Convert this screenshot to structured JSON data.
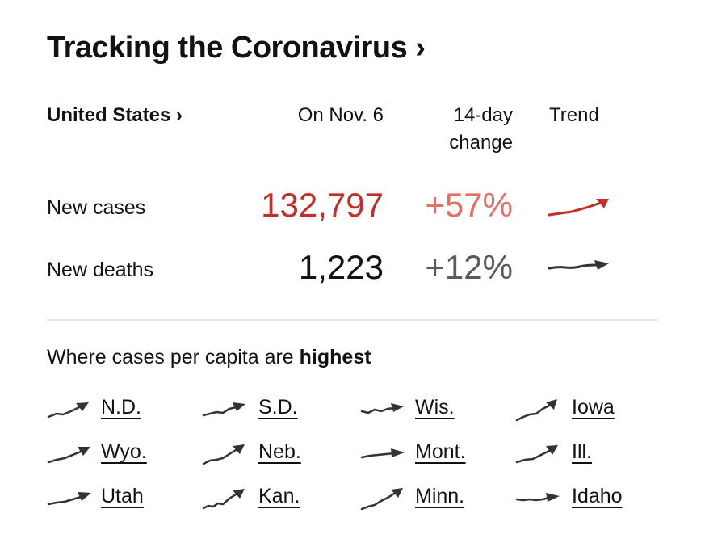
{
  "header": {
    "title": "Tracking the Coronavirus ›"
  },
  "table": {
    "country_label": "United States ›",
    "col_date": "On Nov. 6",
    "col_change_line1": "14-day",
    "col_change_line2": "change",
    "col_trend": "Trend",
    "rows": [
      {
        "label": "New cases",
        "value": "132,797",
        "change": "+57%"
      },
      {
        "label": "New deaths",
        "value": "1,223",
        "change": "+12%"
      }
    ]
  },
  "highest": {
    "prefix": "Where cases per capita are ",
    "emphasis": "highest",
    "states": [
      "N.D.",
      "S.D.",
      "Wis.",
      "Iowa",
      "Wyo.",
      "Neb.",
      "Mont.",
      "Ill.",
      "Utah",
      "Kan.",
      "Minn.",
      "Idaho"
    ]
  },
  "colors": {
    "cases": "#c0302b",
    "cases_change": "#e07069",
    "deaths_change": "#5a5a5a",
    "text": "#121212"
  },
  "icons": {
    "trend": "trend-arrow-icon"
  }
}
